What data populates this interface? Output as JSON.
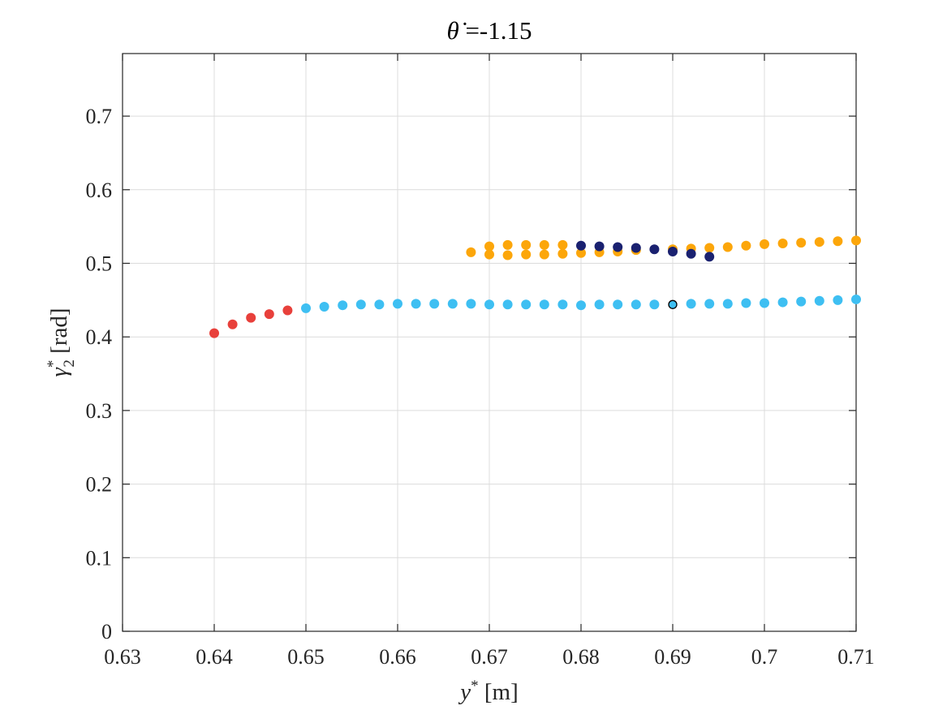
{
  "chart_data": {
    "type": "scatter",
    "title": "θ̇ =-1.15",
    "xlabel": "y* [m]",
    "ylabel": "γ2* [rad]",
    "xlim": [
      0.63,
      0.71
    ],
    "ylim": [
      0,
      0.785
    ],
    "x_ticks": [
      0.63,
      0.64,
      0.65,
      0.66,
      0.67,
      0.68,
      0.69,
      0.7,
      0.71
    ],
    "x_tick_labels": [
      "0.63",
      "0.64",
      "0.65",
      "0.66",
      "0.67",
      "0.68",
      "0.69",
      "0.7",
      "0.71"
    ],
    "y_ticks": [
      0,
      0.1,
      0.2,
      0.3,
      0.4,
      0.5,
      0.6,
      0.7
    ],
    "y_tick_labels": [
      "0",
      "0.1",
      "0.2",
      "0.3",
      "0.4",
      "0.5",
      "0.6",
      "0.7"
    ],
    "grid": true,
    "legend": "none",
    "series": [
      {
        "color": "#e8403b",
        "points": [
          [
            0.64,
            0.405
          ],
          [
            0.642,
            0.417
          ],
          [
            0.644,
            0.426
          ],
          [
            0.646,
            0.431
          ],
          [
            0.648,
            0.436
          ]
        ]
      },
      {
        "color": "#3ebff2",
        "points": [
          [
            0.65,
            0.439
          ],
          [
            0.652,
            0.441
          ],
          [
            0.654,
            0.443
          ],
          [
            0.656,
            0.444
          ],
          [
            0.658,
            0.444
          ],
          [
            0.66,
            0.445
          ],
          [
            0.662,
            0.445
          ],
          [
            0.664,
            0.445
          ],
          [
            0.666,
            0.445
          ],
          [
            0.668,
            0.445
          ],
          [
            0.67,
            0.444
          ],
          [
            0.672,
            0.444
          ],
          [
            0.674,
            0.444
          ],
          [
            0.676,
            0.444
          ],
          [
            0.678,
            0.444
          ],
          [
            0.68,
            0.443
          ],
          [
            0.682,
            0.444
          ],
          [
            0.684,
            0.444
          ],
          [
            0.686,
            0.444
          ],
          [
            0.688,
            0.444
          ],
          [
            0.692,
            0.445
          ],
          [
            0.694,
            0.445
          ],
          [
            0.696,
            0.445
          ],
          [
            0.698,
            0.446
          ],
          [
            0.7,
            0.446
          ],
          [
            0.702,
            0.447
          ],
          [
            0.704,
            0.448
          ],
          [
            0.706,
            0.449
          ],
          [
            0.708,
            0.45
          ],
          [
            0.71,
            0.451
          ]
        ]
      },
      {
        "color": "#fca60a",
        "points": [
          [
            0.668,
            0.515
          ],
          [
            0.67,
            0.523
          ],
          [
            0.672,
            0.525
          ],
          [
            0.674,
            0.525
          ],
          [
            0.676,
            0.525
          ],
          [
            0.678,
            0.525
          ],
          [
            0.67,
            0.512
          ],
          [
            0.672,
            0.511
          ],
          [
            0.674,
            0.512
          ],
          [
            0.676,
            0.512
          ],
          [
            0.678,
            0.513
          ],
          [
            0.68,
            0.514
          ],
          [
            0.682,
            0.515
          ],
          [
            0.684,
            0.516
          ],
          [
            0.686,
            0.518
          ],
          [
            0.69,
            0.519
          ],
          [
            0.692,
            0.52
          ],
          [
            0.694,
            0.521
          ],
          [
            0.696,
            0.522
          ],
          [
            0.698,
            0.524
          ],
          [
            0.7,
            0.526
          ],
          [
            0.702,
            0.527
          ],
          [
            0.704,
            0.528
          ],
          [
            0.706,
            0.529
          ],
          [
            0.708,
            0.53
          ],
          [
            0.71,
            0.531
          ]
        ]
      },
      {
        "color": "#1a2170",
        "points": [
          [
            0.68,
            0.524
          ],
          [
            0.682,
            0.523
          ],
          [
            0.684,
            0.522
          ],
          [
            0.686,
            0.521
          ],
          [
            0.688,
            0.519
          ],
          [
            0.69,
            0.516
          ],
          [
            0.692,
            0.513
          ],
          [
            0.694,
            0.509
          ]
        ]
      },
      {
        "color": "#3ebff2",
        "outline": "#000000",
        "points": [
          [
            0.69,
            0.444
          ]
        ]
      }
    ]
  }
}
